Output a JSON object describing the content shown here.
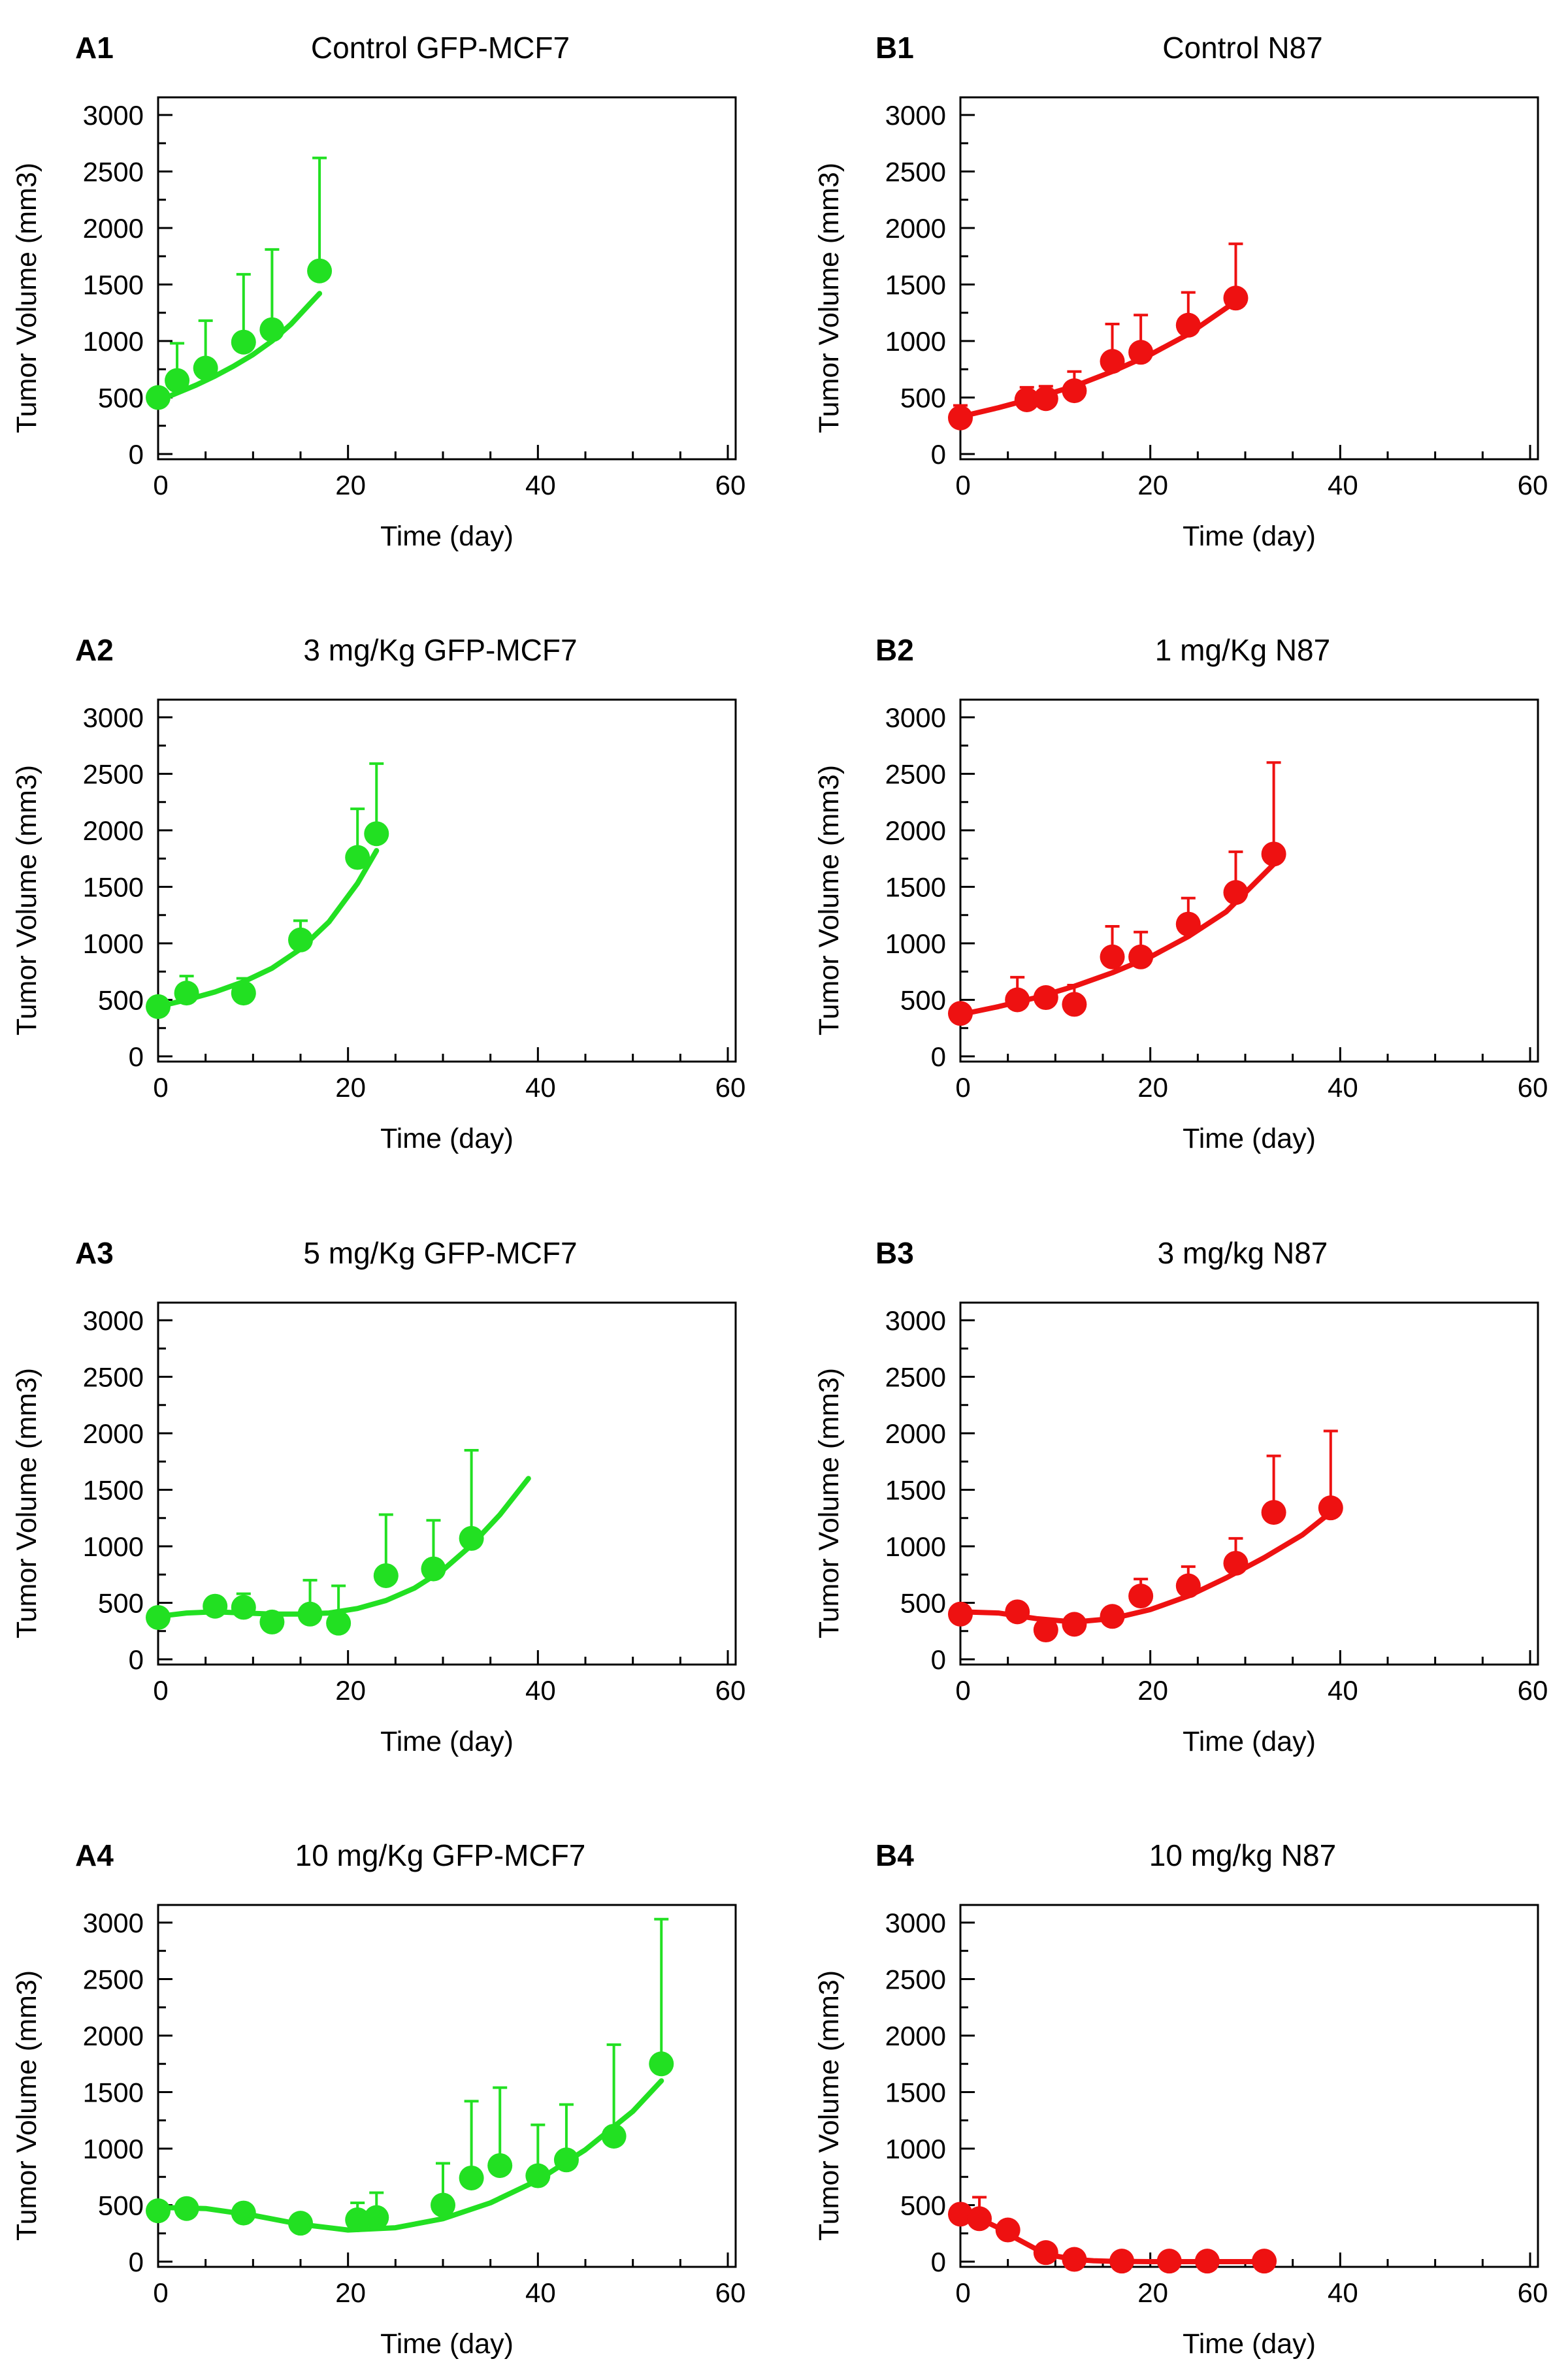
{
  "chart_data": [
    {
      "id": "A1",
      "panel_label": "A1",
      "title": "Control GFP-MCF7",
      "type": "scatter",
      "color": "#22e022",
      "xlabel": "Time (day)",
      "ylabel": "Tumor Volume (mm3)",
      "xlim": [
        0,
        60
      ],
      "ylim": [
        0,
        3000
      ],
      "xticks": [
        "0",
        "20",
        "40",
        "60"
      ],
      "yticks": [
        "0",
        "500",
        "1000",
        "1500",
        "2000",
        "2500",
        "3000"
      ],
      "points": [
        {
          "x": 0,
          "y": 500,
          "err": 0
        },
        {
          "x": 2,
          "y": 650,
          "err": 330
        },
        {
          "x": 5,
          "y": 760,
          "err": 420
        },
        {
          "x": 9,
          "y": 990,
          "err": 600
        },
        {
          "x": 12,
          "y": 1100,
          "err": 710
        },
        {
          "x": 17,
          "y": 1620,
          "err": 1000
        }
      ],
      "fit": {
        "x": [
          0,
          2,
          4,
          6,
          8,
          10,
          12,
          14,
          16,
          17
        ],
        "y": [
          470,
          540,
          610,
          690,
          780,
          880,
          1000,
          1150,
          1330,
          1420
        ]
      }
    },
    {
      "id": "B1",
      "panel_label": "B1",
      "title": "Control N87",
      "type": "scatter",
      "color": "#ee1111",
      "xlabel": "Time (day)",
      "ylabel": "Tumor Volume (mm3)",
      "xlim": [
        0,
        60
      ],
      "ylim": [
        0,
        3000
      ],
      "xticks": [
        "0",
        "20",
        "40",
        "60"
      ],
      "yticks": [
        "0",
        "500",
        "1000",
        "1500",
        "2000",
        "2500",
        "3000"
      ],
      "points": [
        {
          "x": 0,
          "y": 320,
          "err": 110
        },
        {
          "x": 7,
          "y": 480,
          "err": 110
        },
        {
          "x": 9,
          "y": 490,
          "err": 110
        },
        {
          "x": 12,
          "y": 560,
          "err": 170
        },
        {
          "x": 16,
          "y": 820,
          "err": 330
        },
        {
          "x": 19,
          "y": 900,
          "err": 330
        },
        {
          "x": 24,
          "y": 1140,
          "err": 290
        },
        {
          "x": 29,
          "y": 1380,
          "err": 480
        }
      ],
      "fit": {
        "x": [
          0,
          4,
          8,
          12,
          16,
          20,
          24,
          29
        ],
        "y": [
          330,
          410,
          500,
          600,
          730,
          880,
          1060,
          1350
        ]
      }
    },
    {
      "id": "A2",
      "panel_label": "A2",
      "title": "3 mg/Kg GFP-MCF7",
      "type": "scatter",
      "color": "#22e022",
      "xlabel": "Time (day)",
      "ylabel": "Tumor Volume (mm3)",
      "xlim": [
        0,
        60
      ],
      "ylim": [
        0,
        3000
      ],
      "xticks": [
        "0",
        "20",
        "40",
        "60"
      ],
      "yticks": [
        "0",
        "500",
        "1000",
        "1500",
        "2000",
        "2500",
        "3000"
      ],
      "points": [
        {
          "x": 0,
          "y": 440,
          "err": 0
        },
        {
          "x": 3,
          "y": 560,
          "err": 150
        },
        {
          "x": 9,
          "y": 560,
          "err": 130
        },
        {
          "x": 15,
          "y": 1030,
          "err": 170
        },
        {
          "x": 21,
          "y": 1760,
          "err": 430
        },
        {
          "x": 23,
          "y": 1970,
          "err": 620
        }
      ],
      "fit": {
        "x": [
          0,
          3,
          6,
          9,
          12,
          15,
          18,
          21,
          23
        ],
        "y": [
          440,
          500,
          570,
          660,
          780,
          950,
          1190,
          1530,
          1820
        ]
      }
    },
    {
      "id": "B2",
      "panel_label": "B2",
      "title": "1 mg/Kg N87",
      "type": "scatter",
      "color": "#ee1111",
      "xlabel": "Time (day)",
      "ylabel": "Tumor Volume (mm3)",
      "xlim": [
        0,
        60
      ],
      "ylim": [
        0,
        3000
      ],
      "xticks": [
        "0",
        "20",
        "40",
        "60"
      ],
      "yticks": [
        "0",
        "500",
        "1000",
        "1500",
        "2000",
        "2500",
        "3000"
      ],
      "points": [
        {
          "x": 0,
          "y": 380,
          "err": 0
        },
        {
          "x": 6,
          "y": 500,
          "err": 200
        },
        {
          "x": 9,
          "y": 520,
          "err": 0
        },
        {
          "x": 12,
          "y": 460,
          "err": 170
        },
        {
          "x": 16,
          "y": 880,
          "err": 270
        },
        {
          "x": 19,
          "y": 880,
          "err": 220
        },
        {
          "x": 24,
          "y": 1170,
          "err": 230
        },
        {
          "x": 29,
          "y": 1450,
          "err": 360
        },
        {
          "x": 33,
          "y": 1790,
          "err": 810
        }
      ],
      "fit": {
        "x": [
          0,
          4,
          8,
          12,
          16,
          20,
          24,
          28,
          33
        ],
        "y": [
          370,
          440,
          520,
          620,
          740,
          880,
          1060,
          1280,
          1700
        ]
      }
    },
    {
      "id": "A3",
      "panel_label": "A3",
      "title": "5 mg/Kg GFP-MCF7",
      "type": "scatter",
      "color": "#22e022",
      "xlabel": "Time (day)",
      "ylabel": "Tumor Volume (mm3)",
      "xlim": [
        0,
        60
      ],
      "ylim": [
        0,
        3000
      ],
      "xticks": [
        "0",
        "20",
        "40",
        "60"
      ],
      "yticks": [
        "0",
        "500",
        "1000",
        "1500",
        "2000",
        "2500",
        "3000"
      ],
      "points": [
        {
          "x": 0,
          "y": 370,
          "err": 0
        },
        {
          "x": 6,
          "y": 470,
          "err": 0
        },
        {
          "x": 9,
          "y": 460,
          "err": 120
        },
        {
          "x": 12,
          "y": 330,
          "err": 0
        },
        {
          "x": 16,
          "y": 400,
          "err": 300
        },
        {
          "x": 19,
          "y": 320,
          "err": 330
        },
        {
          "x": 24,
          "y": 740,
          "err": 540
        },
        {
          "x": 29,
          "y": 800,
          "err": 430
        },
        {
          "x": 33,
          "y": 1070,
          "err": 780
        }
      ],
      "fit": {
        "x": [
          0,
          3,
          6,
          9,
          12,
          15,
          18,
          21,
          24,
          27,
          30,
          33,
          36,
          39
        ],
        "y": [
          380,
          410,
          420,
          410,
          400,
          400,
          410,
          450,
          520,
          630,
          790,
          1010,
          1280,
          1600
        ]
      }
    },
    {
      "id": "B3",
      "panel_label": "B3",
      "title": "3 mg/kg N87",
      "type": "scatter",
      "color": "#ee1111",
      "xlabel": "Time (day)",
      "ylabel": "Tumor Volume (mm3)",
      "xlim": [
        0,
        60
      ],
      "ylim": [
        0,
        3000
      ],
      "xticks": [
        "0",
        "20",
        "40",
        "60"
      ],
      "yticks": [
        "0",
        "500",
        "1000",
        "1500",
        "2000",
        "2500",
        "3000"
      ],
      "points": [
        {
          "x": 0,
          "y": 400,
          "err": 0
        },
        {
          "x": 6,
          "y": 420,
          "err": 70
        },
        {
          "x": 9,
          "y": 260,
          "err": 0
        },
        {
          "x": 12,
          "y": 310,
          "err": 0
        },
        {
          "x": 16,
          "y": 380,
          "err": 80
        },
        {
          "x": 19,
          "y": 560,
          "err": 150
        },
        {
          "x": 24,
          "y": 650,
          "err": 170
        },
        {
          "x": 29,
          "y": 850,
          "err": 220
        },
        {
          "x": 33,
          "y": 1300,
          "err": 500
        },
        {
          "x": 39,
          "y": 1340,
          "err": 680
        }
      ],
      "fit": {
        "x": [
          0,
          4,
          8,
          12,
          16,
          20,
          24,
          28,
          32,
          36,
          39
        ],
        "y": [
          420,
          410,
          360,
          330,
          360,
          440,
          560,
          720,
          900,
          1100,
          1300
        ]
      }
    },
    {
      "id": "A4",
      "panel_label": "A4",
      "title": "10 mg/Kg GFP-MCF7",
      "type": "scatter",
      "color": "#22e022",
      "xlabel": "Time (day)",
      "ylabel": "Tumor Volume (mm3)",
      "xlim": [
        0,
        60
      ],
      "ylim": [
        0,
        3000
      ],
      "xticks": [
        "0",
        "20",
        "40",
        "60"
      ],
      "yticks": [
        "0",
        "500",
        "1000",
        "1500",
        "2000",
        "2500",
        "3000"
      ],
      "points": [
        {
          "x": 0,
          "y": 450,
          "err": 0
        },
        {
          "x": 3,
          "y": 470,
          "err": 0
        },
        {
          "x": 9,
          "y": 430,
          "err": 0
        },
        {
          "x": 15,
          "y": 340,
          "err": 0
        },
        {
          "x": 21,
          "y": 370,
          "err": 150
        },
        {
          "x": 23,
          "y": 390,
          "err": 220
        },
        {
          "x": 30,
          "y": 500,
          "err": 370
        },
        {
          "x": 33,
          "y": 740,
          "err": 680
        },
        {
          "x": 36,
          "y": 850,
          "err": 690
        },
        {
          "x": 40,
          "y": 760,
          "err": 450
        },
        {
          "x": 43,
          "y": 900,
          "err": 490
        },
        {
          "x": 48,
          "y": 1110,
          "err": 810
        },
        {
          "x": 53,
          "y": 1750,
          "err": 1280
        }
      ],
      "fit": {
        "x": [
          0,
          5,
          10,
          15,
          20,
          25,
          30,
          35,
          40,
          45,
          50,
          53
        ],
        "y": [
          480,
          470,
          410,
          330,
          280,
          300,
          380,
          520,
          720,
          990,
          1330,
          1600
        ]
      }
    },
    {
      "id": "B4",
      "panel_label": "B4",
      "title": "10 mg/kg N87",
      "type": "scatter",
      "color": "#ee1111",
      "xlabel": "Time (day)",
      "ylabel": "Tumor Volume (mm3)",
      "xlim": [
        0,
        60
      ],
      "ylim": [
        0,
        3000
      ],
      "xticks": [
        "0",
        "20",
        "40",
        "60"
      ],
      "yticks": [
        "0",
        "500",
        "1000",
        "1500",
        "2000",
        "2500",
        "3000"
      ],
      "points": [
        {
          "x": 0,
          "y": 420,
          "err": 0
        },
        {
          "x": 2,
          "y": 380,
          "err": 190
        },
        {
          "x": 5,
          "y": 280,
          "err": 0
        },
        {
          "x": 9,
          "y": 80,
          "err": 0
        },
        {
          "x": 12,
          "y": 20,
          "err": 0
        },
        {
          "x": 17,
          "y": 5,
          "err": 0
        },
        {
          "x": 22,
          "y": 5,
          "err": 0
        },
        {
          "x": 26,
          "y": 5,
          "err": 0
        },
        {
          "x": 32,
          "y": 5,
          "err": 0
        }
      ],
      "fit": {
        "x": [
          0,
          2,
          4,
          6,
          8,
          10,
          12,
          14,
          16,
          20,
          25,
          32
        ],
        "y": [
          430,
          380,
          300,
          200,
          110,
          50,
          20,
          8,
          3,
          0,
          0,
          0
        ]
      }
    }
  ]
}
